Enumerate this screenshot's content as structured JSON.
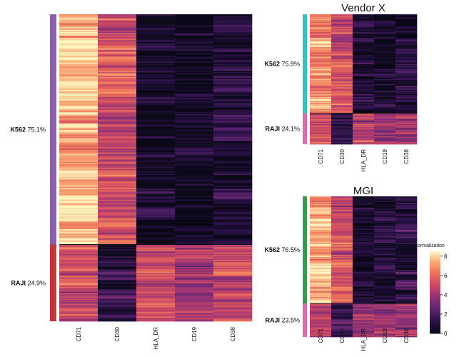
{
  "chart_data": [
    {
      "type": "heatmap",
      "title": "",
      "columns": [
        "CD71",
        "CD30",
        "HLA_DR",
        "CD19",
        "CD38"
      ],
      "groups": [
        {
          "name": "K562",
          "percent": "75.1%",
          "color": "#8B5FA8"
        },
        {
          "name": "RAJI",
          "percent": "24.9%",
          "color": "#C0393A"
        }
      ],
      "group_means": [
        [
          7.6,
          5.3,
          0.4,
          0.3,
          0.9
        ],
        [
          5.0,
          1.5,
          4.8,
          4.4,
          4.7
        ]
      ],
      "rows": 260,
      "seed": 11
    },
    {
      "type": "heatmap",
      "title": "Vendor X",
      "columns": [
        "CD71",
        "CD30",
        "HLA_DR",
        "CD19",
        "CD38"
      ],
      "groups": [
        {
          "name": "K562",
          "percent": "75.9%",
          "color": "#3BBFBE"
        },
        {
          "name": "RAJI",
          "percent": "24.1%",
          "color": "#D46FAF"
        }
      ],
      "group_means": [
        [
          7.0,
          5.2,
          0.6,
          0.4,
          1.2
        ],
        [
          5.1,
          1.6,
          4.6,
          4.0,
          4.1
        ]
      ],
      "rows": 130,
      "seed": 23
    },
    {
      "type": "heatmap",
      "title": "MGI",
      "columns": [
        "CD71",
        "CD30",
        "HLA_DR",
        "CD19",
        "CD38"
      ],
      "groups": [
        {
          "name": "K562",
          "percent": "76.5%",
          "color": "#3E9A48"
        },
        {
          "name": "RAJI",
          "percent": "23.5%",
          "color": "#D46FAF"
        }
      ],
      "group_means": [
        [
          7.3,
          5.4,
          0.7,
          0.9,
          1.3
        ],
        [
          4.6,
          1.9,
          4.4,
          3.9,
          4.1
        ]
      ],
      "rows": 130,
      "seed": 37
    }
  ],
  "legend": {
    "title": "Normalization",
    "ticks": [
      "8",
      "6",
      "4",
      "2",
      "0"
    ],
    "min": 0,
    "max": 8.5
  }
}
